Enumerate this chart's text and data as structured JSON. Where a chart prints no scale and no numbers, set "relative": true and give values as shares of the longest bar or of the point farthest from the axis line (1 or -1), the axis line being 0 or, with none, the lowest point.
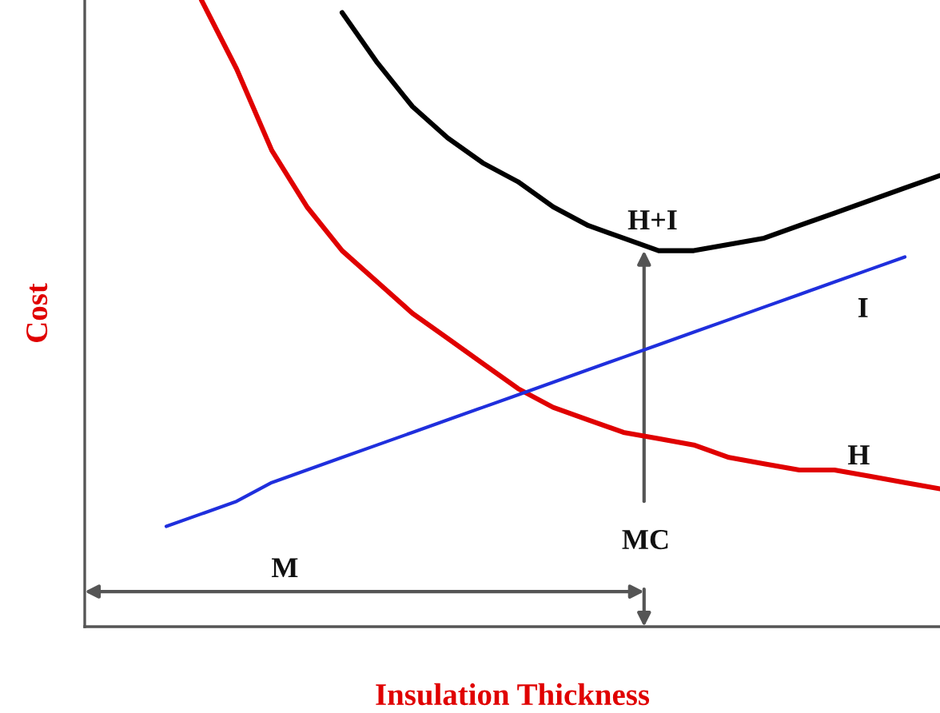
{
  "chart_data": {
    "type": "line",
    "relative": true,
    "xlabel": "Insulation Thickness",
    "ylabel": "Cost",
    "categories": [
      null,
      null,
      null,
      null,
      null,
      null,
      null,
      null,
      null,
      null,
      null,
      null,
      null,
      null,
      null,
      null,
      null,
      null,
      null,
      null,
      null,
      null,
      null,
      null,
      null
    ],
    "series": [
      {
        "color": "#e00000",
        "values": [
          null,
          null,
          null,
          1.0,
          0.89,
          0.76,
          0.67,
          0.6,
          0.55,
          0.5,
          0.46,
          0.42,
          0.38,
          0.35,
          0.33,
          0.31,
          0.3,
          0.29,
          0.27,
          0.26,
          0.25,
          0.25,
          0.24,
          0.23,
          0.22
        ]
      },
      {
        "color": "#000000",
        "values": [
          null,
          null,
          null,
          null,
          null,
          null,
          null,
          0.98,
          0.9,
          0.83,
          0.78,
          0.74,
          0.71,
          0.67,
          0.64,
          0.62,
          0.6,
          0.6,
          0.61,
          0.62,
          0.64,
          0.66,
          0.68,
          0.7,
          0.72
        ]
      },
      {
        "color": "#1f2fdd",
        "values": [
          null,
          null,
          0.16,
          0.18,
          0.2,
          0.23,
          0.25,
          0.27,
          0.29,
          0.31,
          0.33,
          0.35,
          0.37,
          0.39,
          0.41,
          0.43,
          0.45,
          0.47,
          0.49,
          0.51,
          0.53,
          0.55,
          0.57,
          0.59,
          null
        ]
      }
    ],
    "annotations": [
      "H+I",
      "I",
      "H",
      "MC",
      "M"
    ],
    "legend": false,
    "grid": false
  }
}
